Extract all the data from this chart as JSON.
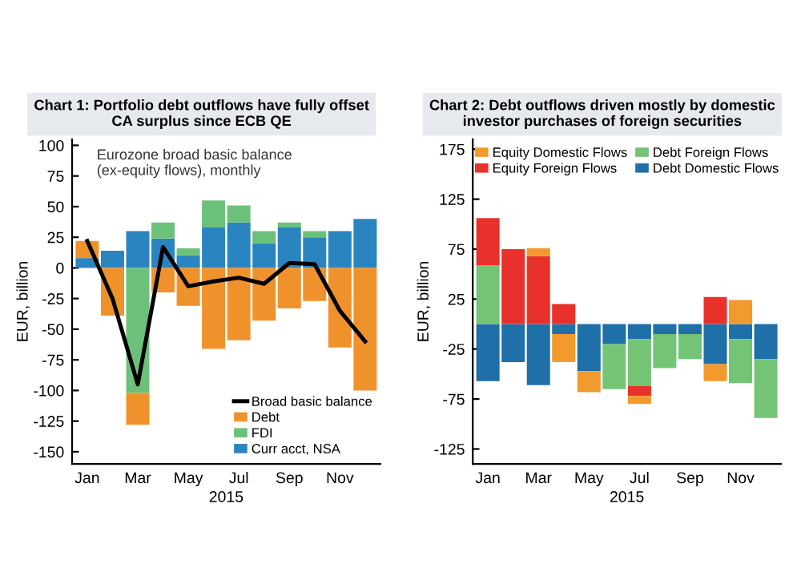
{
  "chart_data": [
    {
      "type": "bar",
      "stacked": true,
      "title": "Chart 1: Portfolio debt outflows have fully offset\nCA surplus since ECB QE",
      "ylabel": "EUR, billion",
      "xlabel": "2015",
      "annotations": [
        "Eurozone broad basic balance\n(ex-equity flows), monthly"
      ],
      "categories": [
        "Jan",
        null,
        "Mar",
        null,
        "May",
        null,
        "Jul",
        null,
        "Sep",
        null,
        "Nov",
        null
      ],
      "series": [
        {
          "name": "Curr acct, NSA",
          "color": "#2a84c0",
          "values": [
            8,
            14,
            30,
            24,
            10,
            33,
            37,
            20,
            33,
            25,
            30,
            40
          ]
        },
        {
          "name": "FDI",
          "color": "#6cc17a",
          "values": [
            0,
            0,
            -102,
            13,
            6,
            22,
            14,
            10,
            4,
            5,
            0,
            0
          ]
        },
        {
          "name": "Debt",
          "color": "#f0922b",
          "values": [
            14,
            -39,
            -26,
            -20,
            -31,
            -66,
            -59,
            -43,
            -33,
            -27,
            -65,
            -100
          ]
        },
        {
          "name": "Broad basic balance",
          "type": "line",
          "color": "#000000",
          "values": [
            22,
            -25,
            -95,
            17,
            -15,
            -11,
            -8,
            -13,
            4,
            3,
            -35,
            -60
          ]
        }
      ],
      "ylim": [
        -160,
        105
      ],
      "yticks": [
        100,
        75,
        50,
        25,
        0,
        -25,
        -50,
        -75,
        -100,
        -125,
        -150
      ],
      "grid": false,
      "legend": "bottom right"
    },
    {
      "type": "bar",
      "stacked": true,
      "title": "Chart 2: Debt outflows driven mostly by domestic\ninvestor purchases of foreign securities",
      "ylabel": "EUR, billion",
      "xlabel": "2015",
      "categories": [
        "Jan",
        null,
        "Mar",
        null,
        "May",
        null,
        "Jul",
        null,
        "Sep",
        null,
        "Nov",
        null
      ],
      "series": [
        {
          "name": "Debt Domestic Flows",
          "color": "#1f6fa8",
          "values": [
            -57,
            -38,
            -61,
            -10,
            -47,
            -20,
            -15,
            -10,
            -10,
            -40,
            -15,
            -35
          ]
        },
        {
          "name": "Debt Foreign Flows",
          "color": "#74c476",
          "values": [
            59,
            0,
            0,
            0,
            0,
            -45,
            -47,
            -34,
            -25,
            0,
            -44,
            -59
          ]
        },
        {
          "name": "Equity Foreign Flows",
          "color": "#e8312a",
          "values": [
            47,
            75,
            68,
            20,
            0,
            0,
            -10,
            0,
            0,
            27,
            0,
            0
          ]
        },
        {
          "name": "Equity Domestic Flows",
          "color": "#f29a2e",
          "values": [
            0,
            0,
            8,
            -28,
            -21,
            0,
            -8,
            0,
            0,
            -17,
            24,
            0
          ]
        }
      ],
      "ylim": [
        -140,
        185
      ],
      "yticks": [
        175,
        125,
        75,
        25,
        -25,
        -75,
        -125
      ],
      "grid": false,
      "legend": "top"
    }
  ]
}
